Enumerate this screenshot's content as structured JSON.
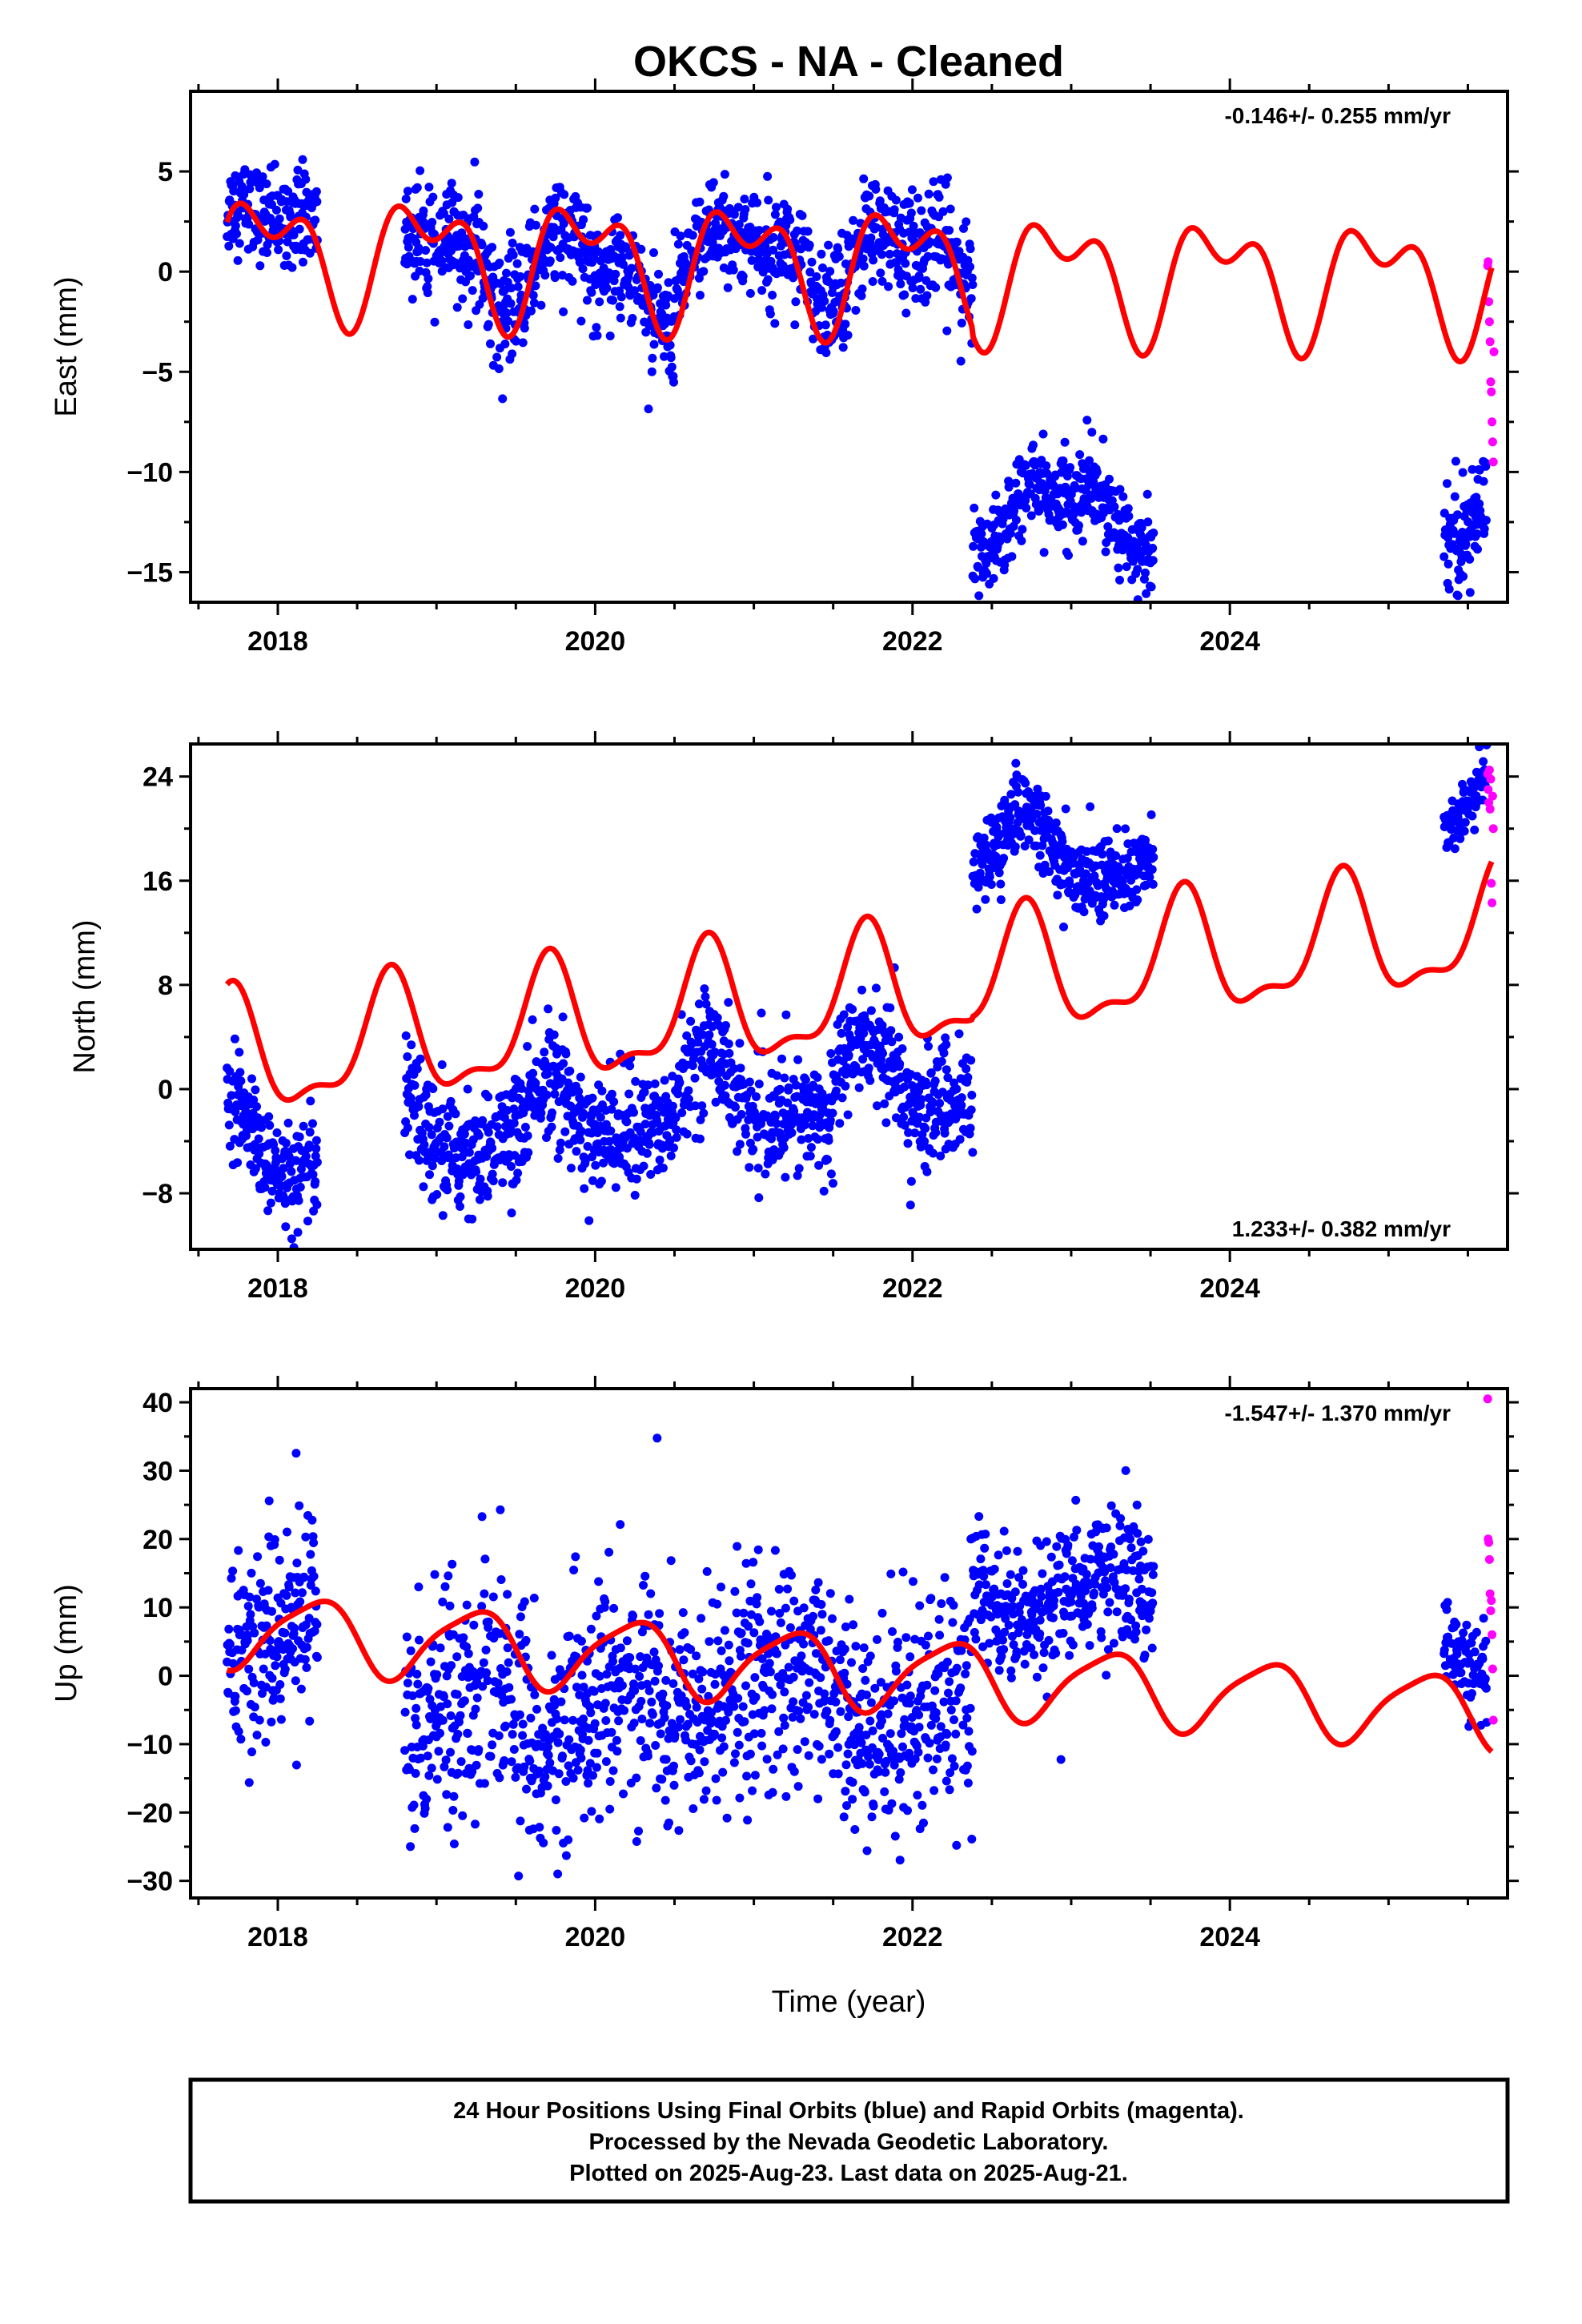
{
  "title": "OKCS  - NA - Cleaned",
  "xlabel": "Time (year)",
  "colors": {
    "final": "#0000ff",
    "rapid": "#ff00ff",
    "model": "#ff0000",
    "frame": "#000000"
  },
  "footer": {
    "line1": "24 Hour Positions Using Final Orbits (blue) and Rapid Orbits (magenta).",
    "line2": "Processed by the Nevada Geodetic Laboratory.",
    "line3": "Plotted on 2025-Aug-23. Last data on 2025-Aug-21."
  },
  "chart_data": [
    {
      "type": "scatter",
      "component": "east",
      "ylabel": "East (mm)",
      "rate_label": "-0.146+/- 0.255 mm/yr",
      "xlim": [
        2017.45,
        2025.75
      ],
      "ylim": [
        -16.5,
        9
      ],
      "xticks": [
        2018,
        2020,
        2022,
        2024
      ],
      "xtick_labels": [
        "2018",
        "2020",
        "2022",
        "2024"
      ],
      "yticks": [
        5,
        0,
        -5,
        -10,
        -15
      ],
      "ytick_labels": [
        "5",
        "0",
        "−5",
        "−10",
        "−15"
      ],
      "data_segments": [
        {
          "start": 2017.68,
          "end": 2018.25,
          "base": 2.0,
          "sd": 1.1
        },
        {
          "start": 2018.8,
          "end": 2019.95,
          "base": 0.6,
          "sd": 1.4
        },
        {
          "start": 2019.95,
          "end": 2020.5,
          "base": -0.4,
          "sd": 1.3
        },
        {
          "start": 2020.5,
          "end": 2021.5,
          "base": 0.8,
          "sd": 1.3
        },
        {
          "start": 2021.5,
          "end": 2022.38,
          "base": 0.6,
          "sd": 1.4
        },
        {
          "start": 2022.38,
          "end": 2023.52,
          "base": -12.0,
          "sd": 1.1
        },
        {
          "start": 2025.35,
          "end": 2025.62,
          "base": -11.0,
          "sd": 1.3
        }
      ],
      "rapid_x": [
        2025.625,
        2025.628,
        2025.632,
        2025.636,
        2025.64,
        2025.644,
        2025.648,
        2025.652,
        2025.656,
        2025.66,
        2025.664
      ],
      "rapid_y": [
        0.3,
        0.5,
        -1.5,
        -2.5,
        -3.5,
        -5.5,
        -6.0,
        -7.5,
        -8.5,
        -9.5,
        -4.0
      ],
      "model": {
        "t0": 2017.68,
        "t1": 2025.65,
        "slope": -0.146,
        "yoff": 0.95,
        "a1": 2.2,
        "b1": -1.0,
        "a2": -1.4,
        "b2": 0.8,
        "offsets": [
          {
            "t": 2022.38,
            "v": -0.35
          }
        ]
      }
    },
    {
      "type": "scatter",
      "component": "north",
      "ylabel": "North (mm)",
      "rate_label": "1.233+/- 0.382 mm/yr",
      "xlim": [
        2017.45,
        2025.75
      ],
      "ylim": [
        -12.3,
        26.5
      ],
      "xticks": [
        2018,
        2020,
        2022,
        2024
      ],
      "xtick_labels": [
        "2018",
        "2020",
        "2022",
        "2024"
      ],
      "yticks": [
        24,
        16,
        8,
        0,
        -8
      ],
      "ytick_labels": [
        "24",
        "16",
        "8",
        "0",
        "−8"
      ],
      "data_segments": [
        {
          "start": 2017.68,
          "end": 2018.25,
          "base": -5.0,
          "sd": 2.0
        },
        {
          "start": 2018.8,
          "end": 2019.95,
          "base": -3.0,
          "sd": 2.2
        },
        {
          "start": 2019.95,
          "end": 2020.5,
          "base": -1.5,
          "sd": 2.2
        },
        {
          "start": 2020.5,
          "end": 2021.5,
          "base": -0.5,
          "sd": 2.2
        },
        {
          "start": 2021.5,
          "end": 2022.38,
          "base": 0.5,
          "sd": 2.3
        },
        {
          "start": 2022.38,
          "end": 2023.52,
          "base": 18.0,
          "sd": 1.5
        },
        {
          "start": 2025.35,
          "end": 2025.62,
          "base": 22.0,
          "sd": 1.0
        }
      ],
      "rapid_x": [
        2025.625,
        2025.628,
        2025.632,
        2025.636,
        2025.64,
        2025.644,
        2025.648,
        2025.652,
        2025.656,
        2025.66
      ],
      "rapid_y": [
        24.2,
        23.0,
        22.0,
        24.5,
        21.5,
        23.8,
        15.8,
        14.3,
        22.5,
        20.0
      ],
      "model": {
        "t0": 2017.68,
        "t1": 2025.65,
        "slope": 1.233,
        "yoff": 2.6,
        "a1": -1.3,
        "b1": -4.2,
        "a2": -1.6,
        "b2": 0.6,
        "offsets": [
          {
            "t": 2022.38,
            "v": 0.2
          }
        ]
      }
    },
    {
      "type": "scatter",
      "component": "up",
      "ylabel": "Up (mm)",
      "rate_label": "-1.547+/- 1.370 mm/yr",
      "xlim": [
        2017.45,
        2025.75
      ],
      "ylim": [
        -32.5,
        42
      ],
      "xticks": [
        2018,
        2020,
        2022,
        2024
      ],
      "xtick_labels": [
        "2018",
        "2020",
        "2022",
        "2024"
      ],
      "yticks": [
        40,
        30,
        20,
        10,
        0,
        -10,
        -20,
        -30
      ],
      "ytick_labels": [
        "40",
        "30",
        "20",
        "10",
        "0",
        "−10",
        "−20",
        "−30"
      ],
      "data_segments": [
        {
          "start": 2017.68,
          "end": 2018.25,
          "base": 6.0,
          "sd": 7.5
        },
        {
          "start": 2018.8,
          "end": 2019.95,
          "base": -5.0,
          "sd": 8.5
        },
        {
          "start": 2019.95,
          "end": 2020.5,
          "base": -4.0,
          "sd": 8.5
        },
        {
          "start": 2020.5,
          "end": 2021.5,
          "base": -2.0,
          "sd": 8.0
        },
        {
          "start": 2021.5,
          "end": 2022.38,
          "base": -6.0,
          "sd": 8.0
        },
        {
          "start": 2022.38,
          "end": 2023.52,
          "base": 12.0,
          "sd": 5.0
        },
        {
          "start": 2025.35,
          "end": 2025.62,
          "base": 1.0,
          "sd": 3.5
        }
      ],
      "rapid_x": [
        2025.625,
        2025.628,
        2025.632,
        2025.636,
        2025.64,
        2025.644,
        2025.648,
        2025.652,
        2025.656,
        2025.66
      ],
      "rapid_y": [
        40.5,
        20.0,
        19.5,
        17.0,
        12.0,
        9.5,
        11.0,
        6.0,
        1.0,
        -6.5
      ],
      "model": {
        "t0": 2017.68,
        "t1": 2025.65,
        "slope": -1.547,
        "yoff": 6.4,
        "a1": 0.6,
        "b1": 5.2,
        "a2": 0.5,
        "b2": -1.0,
        "offsets": [
          {
            "t": 2022.38,
            "v": 0.0
          }
        ]
      }
    }
  ]
}
